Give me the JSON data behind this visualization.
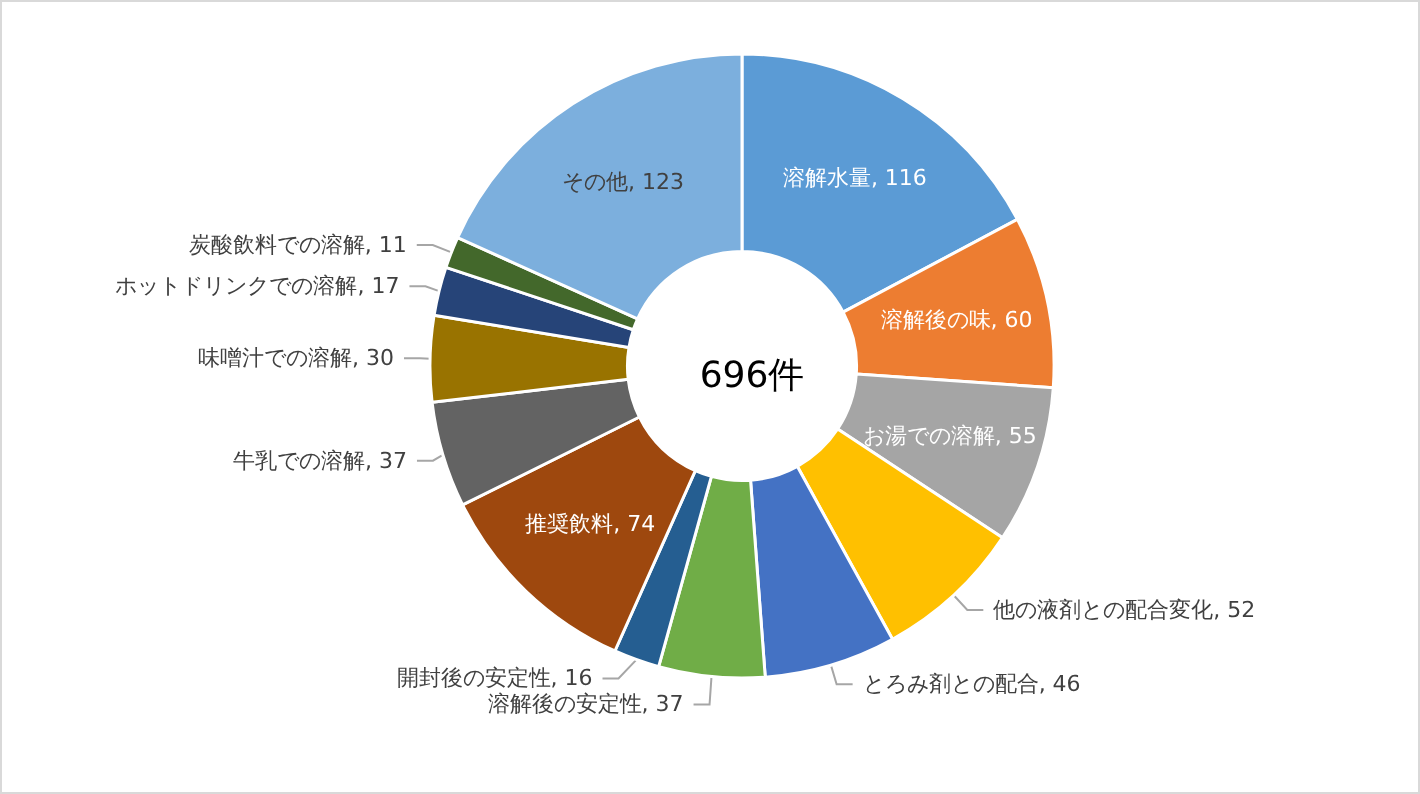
{
  "chart_data": {
    "type": "donut",
    "title": "696件",
    "categories": [
      "溶解水量",
      "溶解後の味",
      "お湯での溶解",
      "他の液剤との配合変化",
      "とろみ剤との配合",
      "溶解後の安定性",
      "開封後の安定性",
      "推奨飲料",
      "牛乳での溶解",
      "味噌汁での溶解",
      "ホットドリンクでの溶解",
      "炭酸飲料での溶解",
      "その他"
    ],
    "values": [
      116,
      60,
      55,
      52,
      46,
      37,
      16,
      74,
      37,
      30,
      17,
      11,
      123
    ],
    "colors": [
      "#5b9bd5",
      "#ed7d31",
      "#a5a5a5",
      "#ffc000",
      "#4472c4",
      "#70ad47",
      "#255e91",
      "#9e480e",
      "#636363",
      "#997300",
      "#264478",
      "#43682b",
      "#7cafdd"
    ],
    "value_labels": [
      ", 116",
      ", 60",
      ", 55",
      ", 52",
      ", 46",
      ", 37",
      ", 16",
      ", 74",
      ", 37",
      ", 30",
      ", 17",
      ", 11",
      ", 123"
    ],
    "legend": false
  }
}
